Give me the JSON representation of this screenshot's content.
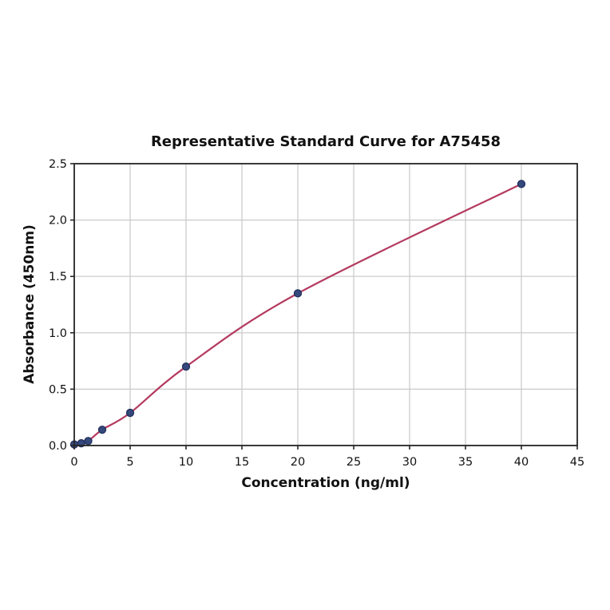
{
  "chart_data": {
    "type": "scatter",
    "title": "Representative Standard Curve for A75458",
    "xlabel": "Concentration (ng/ml)",
    "ylabel": "Absorbance (450nm)",
    "x": [
      0,
      0.625,
      1.25,
      2.5,
      5,
      10,
      20,
      40
    ],
    "y": [
      0.01,
      0.02,
      0.04,
      0.14,
      0.29,
      0.7,
      1.35,
      2.32
    ],
    "xlim": [
      0,
      45
    ],
    "ylim": [
      0,
      2.5
    ],
    "x_ticks": [
      0,
      5,
      10,
      15,
      20,
      25,
      30,
      35,
      40,
      45
    ],
    "x_tick_labels": [
      "0",
      "5",
      "10",
      "15",
      "20",
      "25",
      "30",
      "35",
      "40",
      "45"
    ],
    "y_ticks": [
      0,
      0.5,
      1.0,
      1.5,
      2.0,
      2.5
    ],
    "y_tick_labels": [
      "0.0",
      "0.5",
      "1.0",
      "1.5",
      "2.0",
      "2.5"
    ],
    "grid": true,
    "legend": "none",
    "colors": {
      "line": "#b43a5f",
      "marker_fill": "#35497c",
      "marker_edge": "#22305c",
      "grid": "#c9c9c9",
      "spine": "#262626",
      "text": "#111111",
      "background": "#ffffff"
    }
  }
}
